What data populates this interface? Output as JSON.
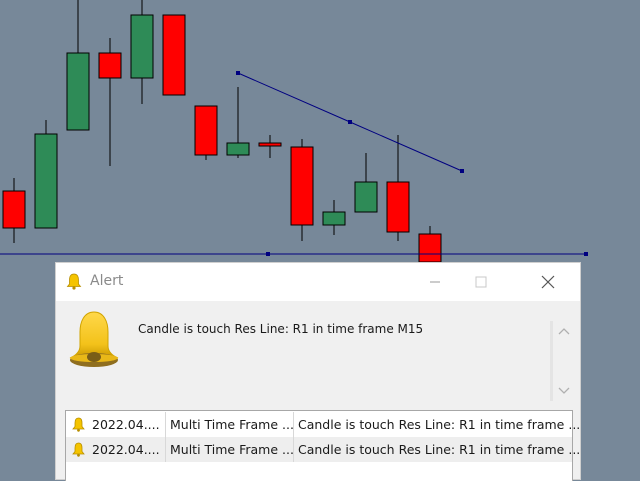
{
  "chart": {
    "colors": {
      "bull": "#2e8b57",
      "bear": "#ff0000",
      "line": "#000080",
      "wick": "#000000"
    },
    "candles": [
      {
        "dir": "bear"
      },
      {
        "dir": "bull"
      },
      {
        "dir": "bull"
      },
      {
        "dir": "bear"
      },
      {
        "dir": "bull"
      },
      {
        "dir": "bear"
      },
      {
        "dir": "bear"
      },
      {
        "dir": "bull"
      },
      {
        "dir": "bear"
      },
      {
        "dir": "bear"
      },
      {
        "dir": "bull"
      },
      {
        "dir": "bull"
      },
      {
        "dir": "bear"
      },
      {
        "dir": "bear"
      }
    ]
  },
  "alert": {
    "title": "Alert",
    "icon": "bell-icon",
    "message": "Candle is touch Res Line: R1 in time frame M15",
    "rows": [
      {
        "time": "2022.04....",
        "name": "Multi Time Frame ...",
        "message": "Candle is touch Res Line: R1 in time frame ..."
      },
      {
        "time": "2022.04....",
        "name": "Multi Time Frame ...",
        "message": "Candle is touch Res Line: R1 in time frame ..."
      }
    ]
  }
}
